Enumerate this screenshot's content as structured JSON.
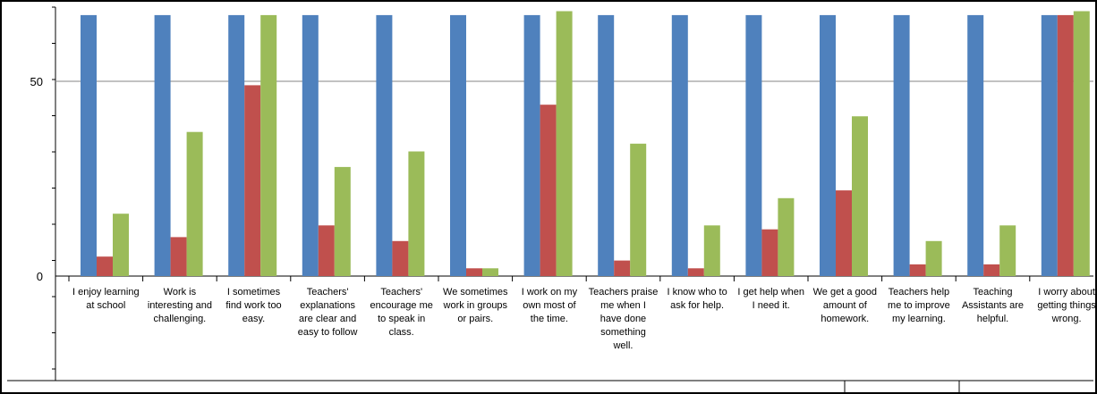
{
  "chart_data": {
    "type": "bar",
    "title": "",
    "xlabel": "",
    "ylabel": "",
    "ylim": [
      0,
      67
    ],
    "yticks": [
      0,
      50
    ],
    "grid": true,
    "categories": [
      [
        "I enjoy learning",
        "at school"
      ],
      [
        "Work is",
        "interesting and",
        "challenging."
      ],
      [
        "I sometimes",
        "find work too",
        "easy."
      ],
      [
        "Teachers'",
        "explanations",
        "are clear and",
        "easy to follow"
      ],
      [
        "Teachers'",
        "encourage me",
        "to speak in",
        "class."
      ],
      [
        "We sometimes",
        "work in groups",
        "or pairs."
      ],
      [
        "I work on my",
        "own most of",
        "the time."
      ],
      [
        "Teachers praise",
        "me when I",
        "have done",
        "something",
        "well."
      ],
      [
        "I know who to",
        "ask for help."
      ],
      [
        "I get help when",
        "I need it."
      ],
      [
        "We get a good",
        "amount of",
        "homework."
      ],
      [
        "Teachers help",
        "me to improve",
        "my learning."
      ],
      [
        "Teaching",
        "Assistants are",
        "helpful."
      ],
      [
        "I worry about",
        "getting things",
        "wrong."
      ]
    ],
    "series": [
      {
        "color": "#4F81BD",
        "values": [
          67,
          67,
          67,
          67,
          67,
          67,
          67,
          67,
          67,
          67,
          67,
          67,
          67,
          67
        ]
      },
      {
        "color": "#C0504D",
        "values": [
          5,
          10,
          49,
          13,
          9,
          2,
          44,
          4,
          2,
          12,
          22,
          3,
          3,
          67
        ]
      },
      {
        "color": "#9BBB59",
        "values": [
          16,
          37,
          67,
          28,
          32,
          2,
          68,
          34,
          13,
          20,
          41,
          9,
          13,
          68
        ]
      }
    ]
  }
}
